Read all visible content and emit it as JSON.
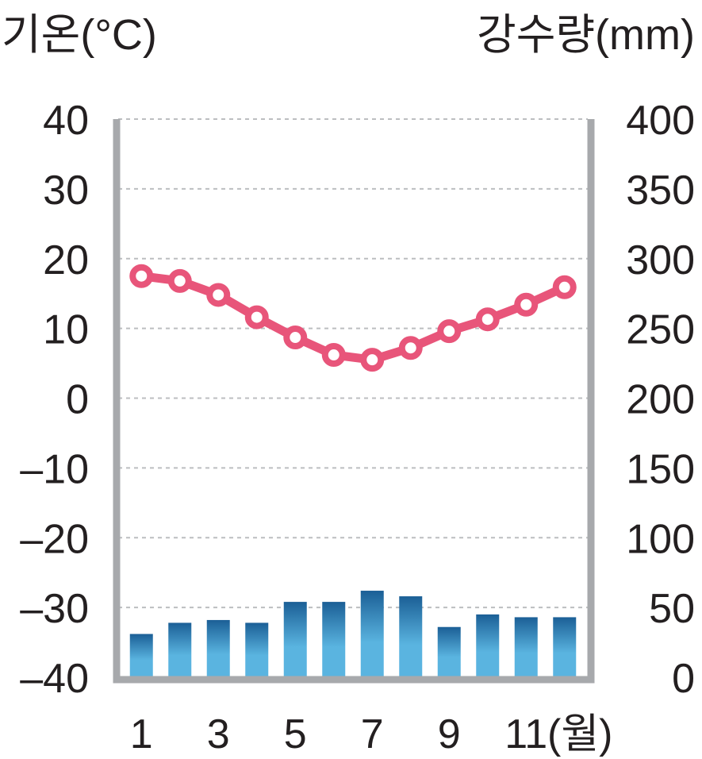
{
  "chart_data": {
    "type": "bar+line",
    "left_axis_title": "기온(°C)",
    "right_axis_title": "강수량(mm)",
    "x_unit_label": "(월)",
    "left_ticks": [
      "40",
      "30",
      "20",
      "10",
      "0",
      "–10",
      "–20",
      "–30",
      "–40"
    ],
    "right_ticks": [
      "400",
      "350",
      "300",
      "250",
      "200",
      "150",
      "100",
      "50",
      "0"
    ],
    "x_tick_labels": [
      "1",
      "3",
      "5",
      "7",
      "9",
      "11"
    ],
    "ylim_left": [
      -40,
      40
    ],
    "ylim_right": [
      0,
      400
    ],
    "grid": "dashed horizontal",
    "categories": [
      1,
      2,
      3,
      4,
      5,
      6,
      7,
      8,
      9,
      10,
      11,
      12
    ],
    "series": [
      {
        "type": "line",
        "axis": "left",
        "color": "#e8557a",
        "values": [
          17.5,
          16.8,
          14.8,
          11.6,
          8.7,
          6.2,
          5.5,
          7.2,
          9.6,
          11.3,
          13.4,
          15.9
        ]
      },
      {
        "type": "bar",
        "axis": "right",
        "color": "#5ab4e0",
        "values": [
          31,
          39,
          41,
          39,
          54,
          54,
          62,
          58,
          36,
          45,
          43,
          43
        ]
      }
    ],
    "colors": {
      "axis": "#a7a9ac",
      "grid": "#bcbec0",
      "bar_light": "#5ab4e0",
      "bar_dark": "#1b5f96",
      "line": "#e8557a",
      "marker_fill": "#ffffff"
    }
  }
}
